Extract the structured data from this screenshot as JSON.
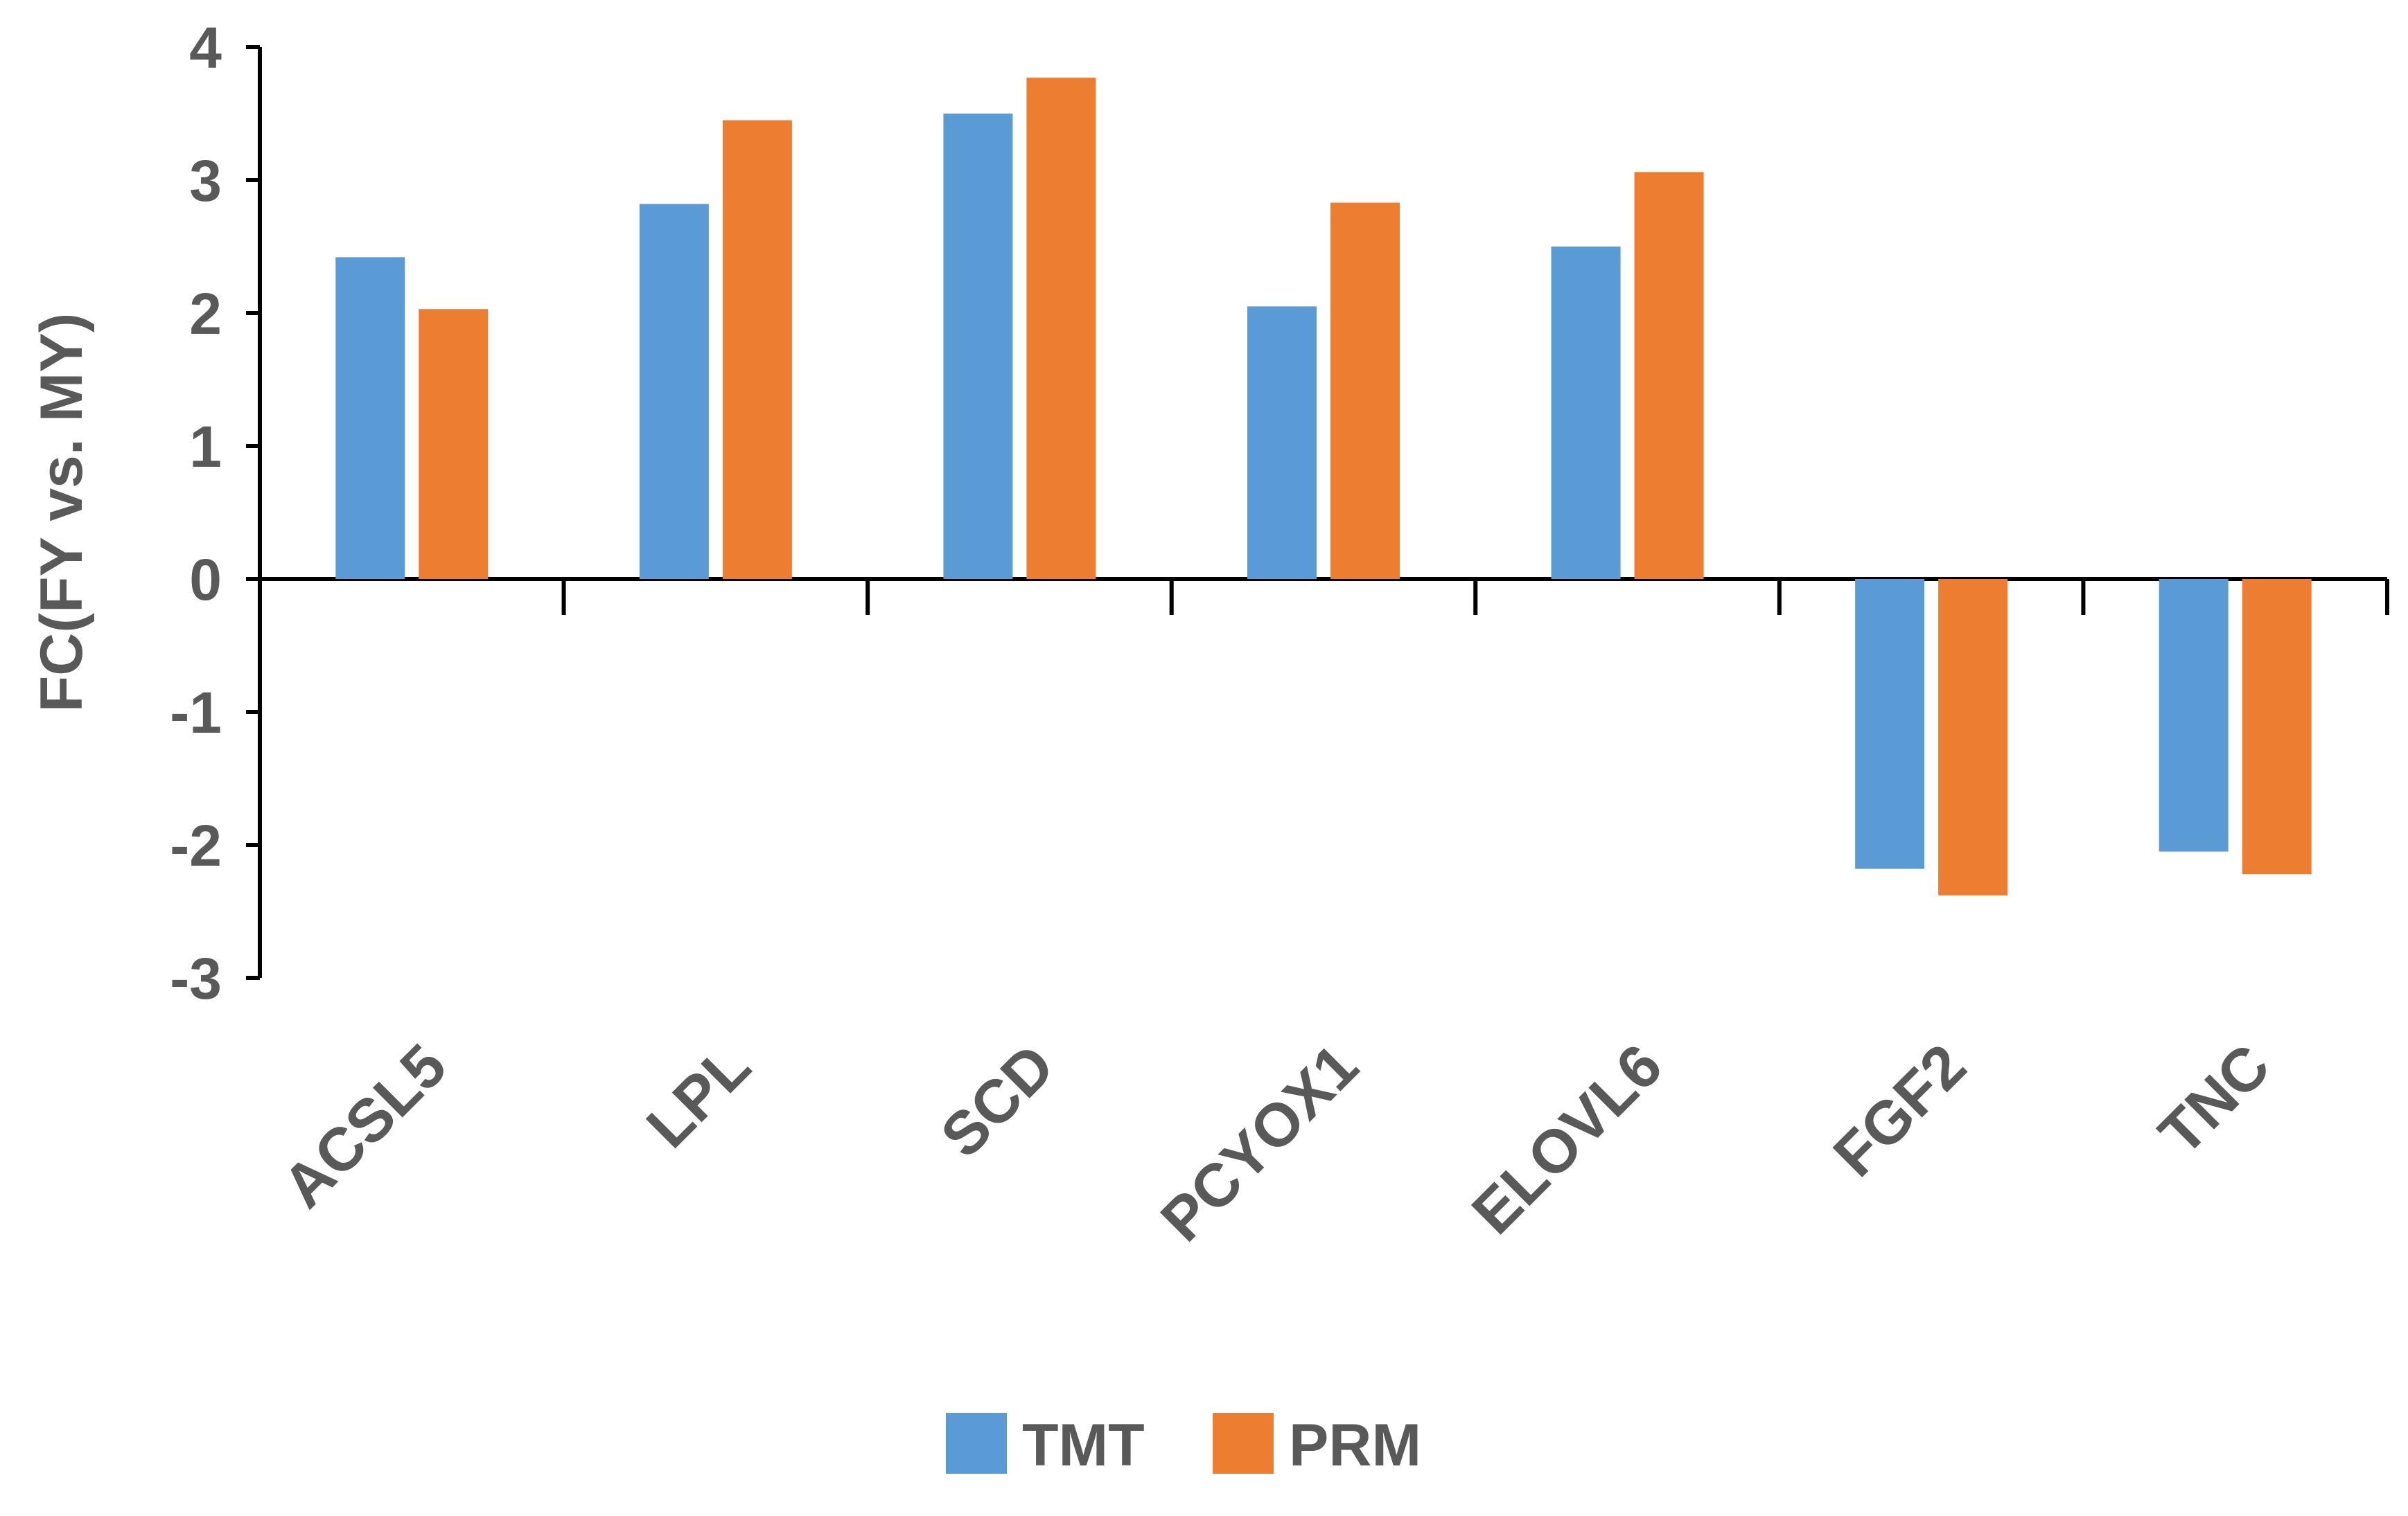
{
  "chart_data": {
    "type": "bar",
    "ylabel": "FC(FY vs. MY)",
    "ylim": [
      -3,
      4
    ],
    "yticks": [
      "4",
      "3",
      "2",
      "1",
      "0",
      "-1",
      "-2",
      "-3"
    ],
    "categories": [
      "ACSL5",
      "LPL",
      "SCD",
      "PCYOX1",
      "ELOVL6",
      "FGF2",
      "TNC"
    ],
    "series": [
      {
        "name": "TMT",
        "color": "#5B9BD5",
        "values": [
          2.42,
          2.82,
          3.5,
          2.05,
          2.5,
          -2.18,
          -2.05
        ]
      },
      {
        "name": "PRM",
        "color": "#ED7D31",
        "values": [
          2.03,
          3.45,
          3.77,
          2.83,
          3.06,
          -2.38,
          -2.22
        ]
      }
    ],
    "grid": false,
    "legend_position": "bottom"
  }
}
